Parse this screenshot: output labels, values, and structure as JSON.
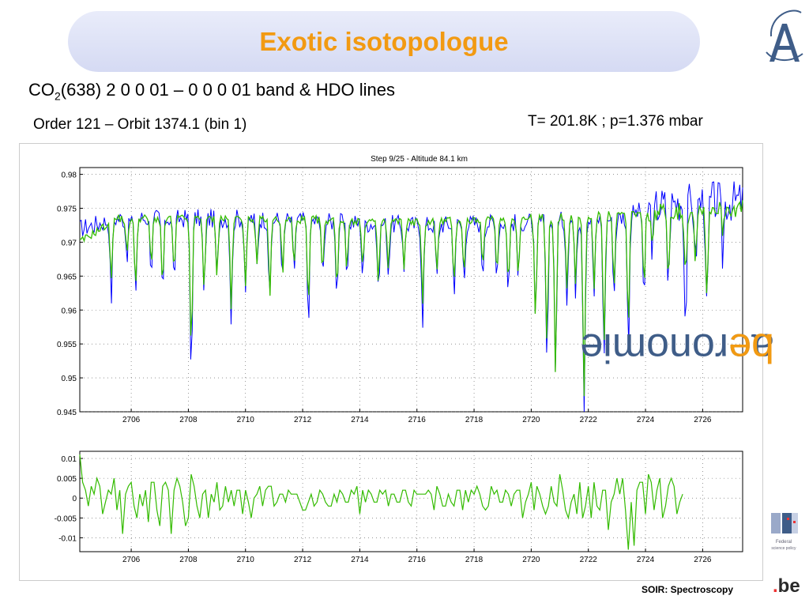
{
  "slide": {
    "title": "Exotic isotopologue",
    "heading_co": "CO",
    "heading_sub": "2",
    "heading_rest": "(638) 2 0 0 01 – 0 0 0 01 band & HDO lines",
    "subheading": "Order 121 – Orbit 1374.1 (bin 1)",
    "conditions": "T= 201.8K ; p=1.376 mbar",
    "footer": "SOIR: Spectroscopy",
    "side_logo_text": "aeronomie",
    "side_logo_dot": ".",
    "side_logo_suffix": "be",
    "be_logo_dot": ".",
    "be_logo_text": "be",
    "fed_logo_line1": "Federal",
    "fed_logo_line2": "science policy"
  },
  "colors": {
    "title": "#f29a12",
    "title_bg": "#dfe3f7",
    "observed": "#0000ff",
    "fit": "#33bb00",
    "brand_blue": "#3f5d88",
    "brand_orange": "#f29a12"
  },
  "chart_data": [
    {
      "type": "line",
      "title": "Step 9/25 - Altitude 84.1 km",
      "xlabel": "",
      "ylabel": "",
      "xlim": [
        2704.2,
        2727.4
      ],
      "ylim": [
        0.945,
        0.981
      ],
      "xticks": [
        2706,
        2708,
        2710,
        2712,
        2714,
        2716,
        2718,
        2720,
        2722,
        2724,
        2726
      ],
      "yticks": [
        0.945,
        0.95,
        0.955,
        0.96,
        0.965,
        0.97,
        0.975,
        0.98
      ],
      "ytick_labels": [
        "0.945",
        "0.95",
        "0.955",
        "0.96",
        "0.965",
        "0.97",
        "0.975",
        "0.98"
      ],
      "grid": true,
      "baseline_observed": [
        [
          2704.2,
          0.972
        ],
        [
          2705.5,
          0.9735
        ],
        [
          2710,
          0.9735
        ],
        [
          2716,
          0.9725
        ],
        [
          2720,
          0.973
        ],
        [
          2723,
          0.9735
        ],
        [
          2724.2,
          0.975
        ],
        [
          2725.2,
          0.976
        ],
        [
          2726.2,
          0.976
        ],
        [
          2727.4,
          0.976
        ]
      ],
      "baseline_fit": [
        [
          2704.2,
          0.97
        ],
        [
          2705.5,
          0.9735
        ],
        [
          2710,
          0.9735
        ],
        [
          2716,
          0.973
        ],
        [
          2720,
          0.9735
        ],
        [
          2723,
          0.974
        ],
        [
          2724.2,
          0.9745
        ],
        [
          2725.2,
          0.9745
        ],
        [
          2726.2,
          0.975
        ],
        [
          2727.4,
          0.975
        ]
      ],
      "lines": [
        {
          "x": 2705.3,
          "obs": 0.9615,
          "fit": 0.965
        },
        {
          "x": 2705.85,
          "obs": 0.968,
          "fit": 0.968
        },
        {
          "x": 2706.15,
          "obs": 0.9625,
          "fit": 0.9635
        },
        {
          "x": 2706.7,
          "obs": 0.966,
          "fit": 0.9665
        },
        {
          "x": 2707.1,
          "obs": 0.9625,
          "fit": 0.9635
        },
        {
          "x": 2707.5,
          "obs": 0.9645,
          "fit": 0.9655
        },
        {
          "x": 2708.1,
          "obs": 0.951,
          "fit": 0.954
        },
        {
          "x": 2708.55,
          "obs": 0.962,
          "fit": 0.9635
        },
        {
          "x": 2709.0,
          "obs": 0.9645,
          "fit": 0.9655
        },
        {
          "x": 2709.5,
          "obs": 0.9585,
          "fit": 0.9605
        },
        {
          "x": 2710.0,
          "obs": 0.963,
          "fit": 0.964
        },
        {
          "x": 2710.4,
          "obs": 0.9665,
          "fit": 0.9665
        },
        {
          "x": 2710.85,
          "obs": 0.961,
          "fit": 0.9625
        },
        {
          "x": 2711.3,
          "obs": 0.9645,
          "fit": 0.9655
        },
        {
          "x": 2711.7,
          "obs": 0.966,
          "fit": 0.9665
        },
        {
          "x": 2712.2,
          "obs": 0.9585,
          "fit": 0.9605
        },
        {
          "x": 2712.7,
          "obs": 0.9645,
          "fit": 0.9655
        },
        {
          "x": 2713.2,
          "obs": 0.9625,
          "fit": 0.9635
        },
        {
          "x": 2713.55,
          "obs": 0.9655,
          "fit": 0.966
        },
        {
          "x": 2714.1,
          "obs": 0.9655,
          "fit": 0.966
        },
        {
          "x": 2714.65,
          "obs": 0.9625,
          "fit": 0.9635
        },
        {
          "x": 2715.0,
          "obs": 0.9655,
          "fit": 0.966
        },
        {
          "x": 2715.55,
          "obs": 0.9665,
          "fit": 0.9665
        },
        {
          "x": 2716.2,
          "obs": 0.9585,
          "fit": 0.9605
        },
        {
          "x": 2716.7,
          "obs": 0.9645,
          "fit": 0.9655
        },
        {
          "x": 2717.3,
          "obs": 0.963,
          "fit": 0.964
        },
        {
          "x": 2717.65,
          "obs": 0.9645,
          "fit": 0.9655
        },
        {
          "x": 2718.3,
          "obs": 0.9655,
          "fit": 0.966
        },
        {
          "x": 2718.8,
          "obs": 0.9655,
          "fit": 0.966
        },
        {
          "x": 2719.2,
          "obs": 0.963,
          "fit": 0.964
        },
        {
          "x": 2719.55,
          "obs": 0.9645,
          "fit": 0.9655
        },
        {
          "x": 2720.15,
          "obs": 0.958,
          "fit": 0.9585
        },
        {
          "x": 2720.55,
          "obs": 0.953,
          "fit": 0.9555
        },
        {
          "x": 2720.85,
          "obs": 0.9505,
          "fit": 0.9505
        },
        {
          "x": 2721.25,
          "obs": 0.962,
          "fit": 0.963
        },
        {
          "x": 2721.55,
          "obs": 0.963,
          "fit": 0.9635
        },
        {
          "x": 2721.85,
          "obs": 0.945,
          "fit": 0.947
        },
        {
          "x": 2722.2,
          "obs": 0.962,
          "fit": 0.9635
        },
        {
          "x": 2722.55,
          "obs": 0.9525,
          "fit": 0.9555
        },
        {
          "x": 2722.9,
          "obs": 0.9625,
          "fit": 0.9635
        },
        {
          "x": 2723.4,
          "obs": 0.9545,
          "fit": 0.9575
        },
        {
          "x": 2723.95,
          "obs": 0.9605,
          "fit": 0.963
        },
        {
          "x": 2724.25,
          "obs": 0.969,
          "fit": 0.9695
        },
        {
          "x": 2724.8,
          "obs": 0.9635,
          "fit": 0.966
        },
        {
          "x": 2725.4,
          "obs": 0.9575,
          "fit": 0.965
        },
        {
          "x": 2725.75,
          "obs": 0.9665,
          "fit": 0.968
        },
        {
          "x": 2726.15,
          "obs": 0.9585,
          "fit": 0.9625
        },
        {
          "x": 2726.7,
          "obs": 0.968,
          "fit": 0.972
        }
      ],
      "series": [
        {
          "name": "",
          "color": "#0000ff",
          "values_key": "obs"
        },
        {
          "name": "",
          "color": "#33bb00",
          "values_key": "fit"
        }
      ]
    },
    {
      "type": "line",
      "title": "",
      "xlabel": "",
      "ylabel": "",
      "xlim": [
        2704.2,
        2727.4
      ],
      "ylim": [
        -0.0135,
        0.0118
      ],
      "xticks": [
        2706,
        2708,
        2710,
        2712,
        2714,
        2716,
        2718,
        2720,
        2722,
        2724,
        2726
      ],
      "yticks": [
        0.01,
        0.005,
        0,
        -0.005,
        -0.01
      ],
      "ytick_labels": [
        "0.01",
        "0.005",
        "0",
        "-0.005",
        "-0.01"
      ],
      "grid": true,
      "series": [
        {
          "name": "",
          "color": "#33bb00",
          "x_start": 2704.2,
          "x_step": 0.1,
          "values": [
            0.011,
            0.004,
            0.002,
            -0.002,
            0.003,
            0.001,
            0.005,
            0.003,
            -0.004,
            -0.001,
            0.002,
            0.001,
            0.005,
            -0.003,
            0.002,
            -0.009,
            0.001,
            0.003,
            0.004,
            -0.002,
            -0.005,
            0.001,
            -0.002,
            0.002,
            -0.006,
            0.004,
            0.004,
            -0.003,
            -0.007,
            0.003,
            0.004,
            0.002,
            -0.009,
            0.002,
            0.005,
            0.003,
            -0.001,
            -0.007,
            -0.005,
            0.006,
            0.003,
            -0.002,
            -0.005,
            0.001,
            0.002,
            -0.005,
            0.001,
            -0.001,
            0.004,
            -0.003,
            -0.002,
            0.003,
            -0.001,
            0.002,
            -0.002,
            0.002,
            0.002,
            -0.004,
            0.002,
            -0.001,
            -0.005,
            0.0,
            0.001,
            0.003,
            -0.002,
            0.002,
            0.003,
            0.003,
            -0.002,
            -0.001,
            0.001,
            0.001,
            -0.001,
            0.002,
            0.001,
            0.001,
            0.001,
            -0.001,
            -0.003,
            -0.003,
            -0.001,
            0.001,
            -0.002,
            -0.001,
            0.002,
            0.001,
            -0.001,
            -0.002,
            -0.002,
            0.001,
            -0.001,
            0.002,
            0.001,
            -0.001,
            -0.001,
            0.002,
            0.001,
            0.003,
            -0.004,
            0.002,
            -0.001,
            0.002,
            0.001,
            -0.001,
            -0.001,
            0.002,
            0.001,
            0.002,
            -0.002,
            0.001,
            0.001,
            -0.001,
            -0.001,
            0.002,
            0.002,
            -0.001,
            -0.002,
            0.002,
            0.001,
            0.001,
            0.001,
            0.001,
            0.002,
            0.001,
            -0.003,
            0.003,
            0.001,
            -0.002,
            -0.002,
            0.001,
            -0.001,
            -0.002,
            0.002,
            0.002,
            -0.003,
            0.002,
            -0.001,
            0.002,
            0.001,
            0.003,
            0.001,
            -0.002,
            -0.003,
            -0.002,
            0.003,
            0.001,
            0.002,
            -0.001,
            -0.001,
            0.002,
            0.001,
            -0.002,
            0.001,
            0.002,
            0.002,
            -0.005,
            -0.001,
            0.001,
            0.004,
            -0.003,
            0.003,
            0.001,
            -0.002,
            -0.004,
            -0.002,
            0.003,
            -0.001,
            -0.002,
            0.006,
            0.002,
            -0.003,
            -0.005,
            -0.001,
            0.001,
            -0.004,
            0.004,
            -0.005,
            -0.002,
            0.003,
            -0.005,
            0.004,
            -0.002,
            -0.003,
            0.002,
            0.002,
            -0.008,
            -0.001,
            0.001,
            0.005,
            0.001,
            0.005,
            -0.003,
            -0.013,
            -0.001,
            -0.012,
            0.002,
            0.004,
            0.004,
            -0.004,
            0.006,
            0.004,
            -0.003,
            0.002,
            0.005,
            -0.005,
            -0.002,
            0.003,
            0.005,
            0.003,
            -0.004,
            -0.001,
            0.001
          ]
        }
      ]
    }
  ]
}
